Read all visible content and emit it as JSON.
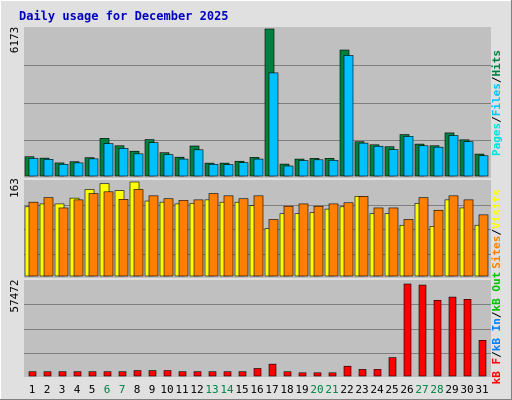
{
  "title": "Daily usage for December 2025",
  "colors": {
    "title": "#0000c0",
    "background": "#e0e0e0",
    "plot": "#c0c0c0",
    "hits": "#008040",
    "files": "#00c0ff",
    "pages": "#00e0e0",
    "visits": "#ffff00",
    "sites": "#ff8000",
    "kbin": "#0080ff",
    "kbout": "#00c000",
    "kbf": "#ff0000",
    "weekend": "#008040",
    "weekday": "#000000"
  },
  "chart_data": [
    {
      "type": "bar",
      "panel": "hits-files-pages",
      "ymax_label": "6173",
      "ymax": 6173,
      "legend": {
        "pages": "Pages",
        "files": "Files",
        "hits": "Hits",
        "sep1": "/",
        "sep2": "/"
      },
      "categories": [
        "1",
        "2",
        "3",
        "4",
        "5",
        "6",
        "7",
        "8",
        "9",
        "10",
        "11",
        "12",
        "13",
        "14",
        "15",
        "16",
        "17",
        "18",
        "19",
        "20",
        "21",
        "22",
        "23",
        "24",
        "25",
        "26",
        "27",
        "28",
        "29",
        "30",
        "31"
      ],
      "series": [
        {
          "name": "Hits",
          "values": [
            810,
            750,
            550,
            600,
            770,
            1580,
            1270,
            1040,
            1530,
            980,
            790,
            1260,
            540,
            540,
            620,
            780,
            6173,
            500,
            710,
            740,
            740,
            5290,
            1440,
            1310,
            1230,
            1740,
            1340,
            1270,
            1810,
            1520,
            920
          ]
        },
        {
          "name": "Files",
          "values": [
            740,
            700,
            490,
            550,
            720,
            1360,
            1160,
            930,
            1400,
            900,
            710,
            1100,
            490,
            480,
            560,
            710,
            4330,
            420,
            650,
            680,
            660,
            5060,
            1380,
            1250,
            1110,
            1660,
            1270,
            1210,
            1700,
            1440,
            850
          ]
        }
      ]
    },
    {
      "type": "bar",
      "panel": "visits-sites",
      "ymax_label": "163",
      "ymax": 163,
      "legend": {
        "sites": "Sites",
        "visits": "Visits",
        "sep1": "/"
      },
      "categories": [
        "1",
        "2",
        "3",
        "4",
        "5",
        "6",
        "7",
        "8",
        "9",
        "10",
        "11",
        "12",
        "13",
        "14",
        "15",
        "16",
        "17",
        "18",
        "19",
        "20",
        "21",
        "22",
        "23",
        "24",
        "25",
        "26",
        "27",
        "28",
        "29",
        "30",
        "31"
      ],
      "series": [
        {
          "name": "Visits",
          "values": [
            120,
            125,
            125,
            135,
            150,
            160,
            148,
            163,
            130,
            128,
            125,
            126,
            132,
            128,
            128,
            122,
            82,
            108,
            108,
            110,
            116,
            120,
            138,
            108,
            108,
            88,
            126,
            86,
            132,
            118,
            88
          ]
        },
        {
          "name": "Sites",
          "values": [
            128,
            136,
            118,
            132,
            143,
            146,
            133,
            150,
            139,
            134,
            131,
            132,
            143,
            139,
            134,
            139,
            98,
            121,
            125,
            121,
            125,
            127,
            138,
            118,
            118,
            98,
            136,
            114,
            139,
            132,
            106
          ]
        }
      ]
    },
    {
      "type": "bar",
      "panel": "kbytes",
      "ymax_label": "57472",
      "ymax": 57472,
      "legend": {
        "kbf": "kB F",
        "kbin": "kB In",
        "kbout": "kB Out",
        "sep1": "/",
        "sep2": "/"
      },
      "categories": [
        "1",
        "2",
        "3",
        "4",
        "5",
        "6",
        "7",
        "8",
        "9",
        "10",
        "11",
        "12",
        "13",
        "14",
        "15",
        "16",
        "17",
        "18",
        "19",
        "20",
        "21",
        "22",
        "23",
        "24",
        "25",
        "26",
        "27",
        "28",
        "29",
        "30",
        "31"
      ],
      "series": [
        {
          "name": "kB F",
          "values": [
            2700,
            2700,
            2700,
            2700,
            2700,
            2700,
            2700,
            3400,
            3400,
            3400,
            2700,
            2700,
            2700,
            2700,
            2700,
            4700,
            7400,
            2700,
            2000,
            2000,
            2000,
            6100,
            4100,
            4100,
            11500,
            57472,
            56800,
            47300,
            49300,
            47900,
            22300
          ]
        }
      ]
    }
  ],
  "days": [
    {
      "label": "1",
      "weekend": false
    },
    {
      "label": "2",
      "weekend": false
    },
    {
      "label": "3",
      "weekend": false
    },
    {
      "label": "4",
      "weekend": false
    },
    {
      "label": "5",
      "weekend": false
    },
    {
      "label": "6",
      "weekend": true
    },
    {
      "label": "7",
      "weekend": true
    },
    {
      "label": "8",
      "weekend": false
    },
    {
      "label": "9",
      "weekend": false
    },
    {
      "label": "10",
      "weekend": false
    },
    {
      "label": "11",
      "weekend": false
    },
    {
      "label": "12",
      "weekend": false
    },
    {
      "label": "13",
      "weekend": true
    },
    {
      "label": "14",
      "weekend": true
    },
    {
      "label": "15",
      "weekend": false
    },
    {
      "label": "16",
      "weekend": false
    },
    {
      "label": "17",
      "weekend": false
    },
    {
      "label": "18",
      "weekend": false
    },
    {
      "label": "19",
      "weekend": false
    },
    {
      "label": "20",
      "weekend": true
    },
    {
      "label": "21",
      "weekend": true
    },
    {
      "label": "22",
      "weekend": false
    },
    {
      "label": "23",
      "weekend": false
    },
    {
      "label": "24",
      "weekend": false
    },
    {
      "label": "25",
      "weekend": false
    },
    {
      "label": "26",
      "weekend": false
    },
    {
      "label": "27",
      "weekend": true
    },
    {
      "label": "28",
      "weekend": true
    },
    {
      "label": "29",
      "weekend": false
    },
    {
      "label": "30",
      "weekend": false
    },
    {
      "label": "31",
      "weekend": false
    }
  ]
}
